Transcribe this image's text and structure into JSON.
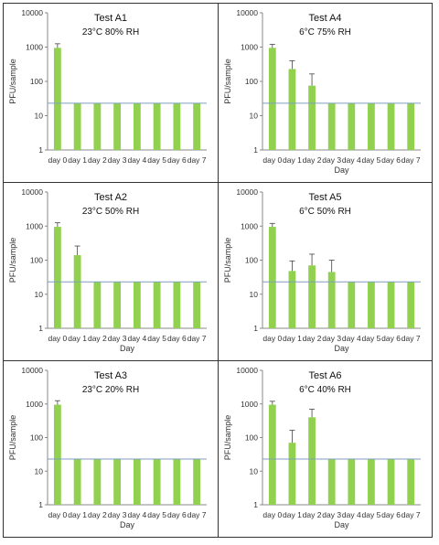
{
  "chart_data": [
    {
      "type": "bar",
      "title": "Test A1",
      "subtitle": "23°C 80% RH",
      "xlabel": "",
      "ylabel": "PFU/sample",
      "yscale": "log",
      "ylim": [
        1,
        10000
      ],
      "yticks": [
        "1",
        "10",
        "100",
        "1000",
        "10000"
      ],
      "categories": [
        "day 0",
        "day 1",
        "day 2",
        "day 3",
        "day 4",
        "day 5",
        "day 6",
        "day 7"
      ],
      "values": [
        950,
        23,
        23,
        23,
        23,
        23,
        23,
        23
      ],
      "error_upper": [
        1250,
        null,
        null,
        null,
        null,
        null,
        null,
        null
      ],
      "reference_line": 23,
      "bar_color": "#92d050",
      "line_color": "#7f9fbf"
    },
    {
      "type": "bar",
      "title": "Test A4",
      "subtitle": "6°C 75% RH",
      "xlabel": "Day",
      "ylabel": "PFU/sample",
      "yscale": "log",
      "ylim": [
        1,
        10000
      ],
      "yticks": [
        "1",
        "10",
        "100",
        "1000",
        "10000"
      ],
      "categories": [
        "day 0",
        "day 1",
        "day 2",
        "day 3",
        "day 4",
        "day 5",
        "day 6",
        "day 7"
      ],
      "values": [
        950,
        230,
        75,
        23,
        23,
        23,
        23,
        23
      ],
      "error_upper": [
        1200,
        400,
        165,
        null,
        null,
        null,
        null,
        null
      ],
      "reference_line": 23,
      "bar_color": "#92d050",
      "line_color": "#7f9fbf"
    },
    {
      "type": "bar",
      "title": "Test A2",
      "subtitle": "23°C 50% RH",
      "xlabel": "Day",
      "ylabel": "PFU/sample",
      "yscale": "log",
      "ylim": [
        1,
        10000
      ],
      "yticks": [
        "1",
        "10",
        "100",
        "1000",
        "10000"
      ],
      "categories": [
        "day 0",
        "day 1",
        "day 2",
        "day 3",
        "day 4",
        "day 5",
        "day 6",
        "day 7"
      ],
      "values": [
        950,
        140,
        23,
        23,
        23,
        23,
        23,
        23
      ],
      "error_upper": [
        1250,
        260,
        null,
        null,
        null,
        null,
        null,
        null
      ],
      "reference_line": 23,
      "bar_color": "#92d050",
      "line_color": "#7f9fbf"
    },
    {
      "type": "bar",
      "title": "Test A5",
      "subtitle": "6°C 50% RH",
      "xlabel": "Day",
      "ylabel": "PFU/sample",
      "yscale": "log",
      "ylim": [
        1,
        10000
      ],
      "yticks": [
        "1",
        "10",
        "100",
        "1000",
        "10000"
      ],
      "categories": [
        "day 0",
        "day 1",
        "day 2",
        "day 3",
        "day 4",
        "day 5",
        "day 6",
        "day 7"
      ],
      "values": [
        950,
        48,
        70,
        45,
        23,
        23,
        23,
        23
      ],
      "error_upper": [
        1200,
        95,
        150,
        100,
        null,
        null,
        null,
        null
      ],
      "reference_line": 23,
      "bar_color": "#92d050",
      "line_color": "#7f9fbf"
    },
    {
      "type": "bar",
      "title": "Test A3",
      "subtitle": "23°C 20% RH",
      "xlabel": "Day",
      "ylabel": "PFU/sample",
      "yscale": "log",
      "ylim": [
        1,
        10000
      ],
      "yticks": [
        "1",
        "10",
        "100",
        "1000",
        "10000"
      ],
      "categories": [
        "day 0",
        "day 1",
        "day 2",
        "day 3",
        "day 4",
        "day 5",
        "day 6",
        "day 7"
      ],
      "values": [
        950,
        23,
        23,
        23,
        23,
        23,
        23,
        23
      ],
      "error_upper": [
        1250,
        null,
        null,
        null,
        null,
        null,
        null,
        null
      ],
      "reference_line": 23,
      "bar_color": "#92d050",
      "line_color": "#7f9fbf"
    },
    {
      "type": "bar",
      "title": "Test A6",
      "subtitle": "6°C 40% RH",
      "xlabel": "Day",
      "ylabel": "PFU/sample",
      "yscale": "log",
      "ylim": [
        1,
        10000
      ],
      "yticks": [
        "1",
        "10",
        "100",
        "1000",
        "10000"
      ],
      "categories": [
        "day 0",
        "day 1",
        "day 2",
        "day 3",
        "day 4",
        "day 5",
        "day 6",
        "day 7"
      ],
      "values": [
        950,
        70,
        400,
        23,
        23,
        23,
        23,
        23
      ],
      "error_upper": [
        1200,
        165,
        700,
        null,
        null,
        null,
        null,
        null
      ],
      "reference_line": 23,
      "bar_color": "#92d050",
      "line_color": "#7f9fbf"
    }
  ]
}
